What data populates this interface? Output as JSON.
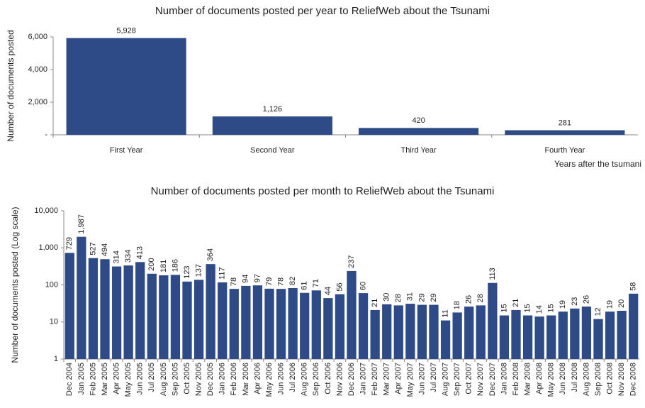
{
  "chart_data": [
    {
      "type": "bar",
      "title": "Number of documents posted per year to ReliefWeb about the Tsunami",
      "y_label": "Number of documents posted",
      "x_label": "Years after the tsumani",
      "categories": [
        "First Year",
        "Second Year",
        "Third Year",
        "Fourth Year"
      ],
      "values": [
        5928,
        1126,
        420,
        281
      ],
      "value_labels": [
        "5,928",
        "1,126",
        "420",
        "281"
      ],
      "color": "#2e4a87",
      "ylim": [
        0,
        6000
      ],
      "yticks": [
        {
          "value": 0,
          "label": "-"
        },
        {
          "value": 2000,
          "label": "2,000"
        },
        {
          "value": 4000,
          "label": "4,000"
        },
        {
          "value": 6000,
          "label": "6,000"
        }
      ]
    },
    {
      "type": "bar",
      "title": "Number of documents posted per month to ReliefWeb about the Tsunami",
      "y_label": "Number of documents posted (Log scale)",
      "categories": [
        "Dec 2004",
        "Jan 2005",
        "Feb 2005",
        "Mar 2005",
        "Apr 2005",
        "May 2005",
        "Jun 2005",
        "Jul 2005",
        "Aug 2005",
        "Sep 2005",
        "Oct 2005",
        "Nov 2005",
        "Dec 2005",
        "Jan 2006",
        "Feb 2006",
        "Mar 2006",
        "Apr 2006",
        "May 2006",
        "Jun 2006",
        "Jul 2006",
        "Aug 2006",
        "Sep 2006",
        "Oct 2006",
        "Nov 2006",
        "Dec 2006",
        "Jan 2007",
        "Feb 2007",
        "Mar 2007",
        "Apr 2007",
        "May 2007",
        "Jun 2007",
        "Jul 2007",
        "Aug 2007",
        "Sep 2007",
        "Oct 2007",
        "Nov 2007",
        "Dec 2007",
        "Jan 2008",
        "Feb 2008",
        "Mar 2008",
        "Apr 2008",
        "May 2008",
        "Jun 2008",
        "Jul 2008",
        "Aug 2008",
        "Sep 2008",
        "Oct 2008",
        "Nov 2008",
        "Dec 2008"
      ],
      "values": [
        729,
        1987,
        527,
        494,
        314,
        334,
        413,
        200,
        181,
        186,
        123,
        137,
        364,
        117,
        78,
        94,
        97,
        79,
        78,
        82,
        61,
        71,
        44,
        56,
        237,
        60,
        21,
        30,
        28,
        31,
        29,
        29,
        11,
        18,
        26,
        28,
        113,
        15,
        21,
        15,
        14,
        15,
        19,
        23,
        26,
        12,
        19,
        20,
        58
      ],
      "value_labels": [
        "729",
        "1,987",
        "527",
        "494",
        "314",
        "334",
        "413",
        "200",
        "181",
        "186",
        "123",
        "137",
        "364",
        "117",
        "78",
        "94",
        "97",
        "79",
        "78",
        "82",
        "61",
        "71",
        "44",
        "56",
        "237",
        "60",
        "21",
        "30",
        "28",
        "31",
        "29",
        "29",
        "11",
        "18",
        "26",
        "28",
        "113",
        "15",
        "21",
        "15",
        "14",
        "15",
        "19",
        "23",
        "26",
        "12",
        "19",
        "20",
        "58"
      ],
      "color": "#2e4a87",
      "log_scale": true,
      "ylim": [
        1,
        10000
      ],
      "yticks": [
        1,
        10,
        100,
        {
          "value": 1000,
          "label": "1,000"
        },
        {
          "value": 10000,
          "label": "10,000"
        }
      ]
    }
  ]
}
